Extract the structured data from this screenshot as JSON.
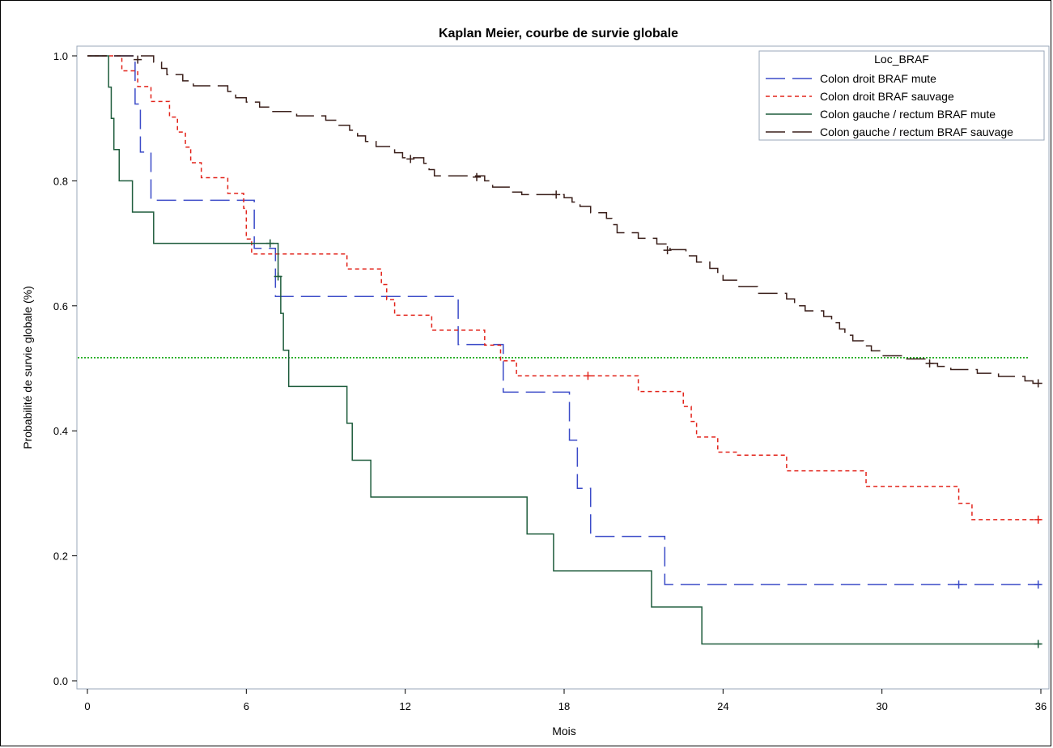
{
  "chart_data": {
    "type": "line",
    "title": "Kaplan Meier, courbe de survie globale",
    "xlabel": "Mois",
    "ylabel": "Probabilité de survie globale (%)",
    "xlim": [
      0,
      36
    ],
    "ylim": [
      0,
      1
    ],
    "xticks": [
      "0",
      "6",
      "12",
      "18",
      "24",
      "30",
      "36"
    ],
    "yticks": [
      "0.0",
      "0.2",
      "0.4",
      "0.6",
      "0.8",
      "1.0"
    ],
    "grid": false,
    "legend": {
      "title": "Loc_BRAF",
      "position": "top-right"
    },
    "reference_line": {
      "y": 0.517,
      "color": "#00a000"
    },
    "series": [
      {
        "name": "Colon droit BRAF mute",
        "color": "#3b4bc8",
        "steps": [
          [
            0,
            1
          ],
          [
            1.8,
            0.923
          ],
          [
            2.0,
            0.846
          ],
          [
            2.4,
            0.769
          ],
          [
            6.3,
            0.692
          ],
          [
            7.1,
            0.615
          ],
          [
            14.0,
            0.538
          ],
          [
            15.7,
            0.462
          ],
          [
            18.2,
            0.385
          ],
          [
            18.5,
            0.308
          ],
          [
            19.0,
            0.231
          ],
          [
            21.8,
            0.154
          ],
          [
            36,
            0.154
          ]
        ],
        "censored": [
          [
            32.9,
            0.154
          ],
          [
            35.9,
            0.154
          ]
        ]
      },
      {
        "name": "Colon droit BRAF sauvage",
        "color": "#e2231a",
        "steps": [
          [
            0,
            1
          ],
          [
            1.3,
            0.976
          ],
          [
            1.9,
            0.951
          ],
          [
            2.4,
            0.927
          ],
          [
            3.1,
            0.902
          ],
          [
            3.4,
            0.878
          ],
          [
            3.7,
            0.854
          ],
          [
            3.9,
            0.829
          ],
          [
            4.3,
            0.805
          ],
          [
            5.3,
            0.78
          ],
          [
            5.9,
            0.756
          ],
          [
            6.0,
            0.707
          ],
          [
            6.2,
            0.683
          ],
          [
            9.8,
            0.659
          ],
          [
            11.1,
            0.634
          ],
          [
            11.3,
            0.61
          ],
          [
            11.6,
            0.585
          ],
          [
            13.0,
            0.561
          ],
          [
            15.0,
            0.537
          ],
          [
            15.6,
            0.512
          ],
          [
            16.2,
            0.488
          ],
          [
            20.8,
            0.463
          ],
          [
            22.5,
            0.439
          ],
          [
            22.8,
            0.415
          ],
          [
            23.0,
            0.39
          ],
          [
            23.8,
            0.366
          ],
          [
            24.5,
            0.361
          ],
          [
            26.4,
            0.336
          ],
          [
            29.4,
            0.311
          ],
          [
            32.9,
            0.284
          ],
          [
            33.4,
            0.258
          ],
          [
            36,
            0.258
          ]
        ],
        "censored": [
          [
            18.9,
            0.488
          ],
          [
            35.9,
            0.258
          ]
        ]
      },
      {
        "name": "Colon gauche / rectum BRAF mute",
        "color": "#1e5c3c",
        "steps": [
          [
            0,
            1
          ],
          [
            0.8,
            0.95
          ],
          [
            0.9,
            0.9
          ],
          [
            1.0,
            0.85
          ],
          [
            1.2,
            0.8
          ],
          [
            1.7,
            0.75
          ],
          [
            2.5,
            0.7
          ],
          [
            7.2,
            0.647
          ],
          [
            7.3,
            0.588
          ],
          [
            7.4,
            0.529
          ],
          [
            7.6,
            0.471
          ],
          [
            9.8,
            0.412
          ],
          [
            10.0,
            0.353
          ],
          [
            10.7,
            0.294
          ],
          [
            16.6,
            0.235
          ],
          [
            17.6,
            0.176
          ],
          [
            21.3,
            0.118
          ],
          [
            23.2,
            0.059
          ],
          [
            36,
            0.059
          ]
        ],
        "censored": [
          [
            6.9,
            0.7
          ],
          [
            7.2,
            0.647
          ],
          [
            35.9,
            0.059
          ]
        ]
      },
      {
        "name": "Colon gauche / rectum BRAF sauvage",
        "color": "#3a1f1a",
        "steps": [
          [
            0,
            1
          ],
          [
            2.5,
            0.99
          ],
          [
            2.8,
            0.98
          ],
          [
            3.0,
            0.97
          ],
          [
            3.6,
            0.96
          ],
          [
            4.0,
            0.952
          ],
          [
            5.3,
            0.943
          ],
          [
            5.6,
            0.933
          ],
          [
            6.0,
            0.926
          ],
          [
            6.5,
            0.918
          ],
          [
            7.0,
            0.911
          ],
          [
            7.9,
            0.904
          ],
          [
            9.0,
            0.897
          ],
          [
            9.5,
            0.889
          ],
          [
            9.9,
            0.881
          ],
          [
            10.2,
            0.872
          ],
          [
            10.5,
            0.863
          ],
          [
            10.9,
            0.855
          ],
          [
            11.6,
            0.845
          ],
          [
            11.9,
            0.837
          ],
          [
            12.7,
            0.828
          ],
          [
            12.9,
            0.818
          ],
          [
            13.1,
            0.808
          ],
          [
            15.0,
            0.8
          ],
          [
            15.3,
            0.79
          ],
          [
            16.0,
            0.782
          ],
          [
            16.4,
            0.778
          ],
          [
            18.0,
            0.773
          ],
          [
            18.3,
            0.766
          ],
          [
            18.6,
            0.759
          ],
          [
            19.0,
            0.749
          ],
          [
            19.6,
            0.74
          ],
          [
            19.8,
            0.73
          ],
          [
            20.0,
            0.717
          ],
          [
            20.8,
            0.708
          ],
          [
            21.5,
            0.699
          ],
          [
            22.0,
            0.69
          ],
          [
            22.6,
            0.68
          ],
          [
            23.0,
            0.67
          ],
          [
            23.5,
            0.66
          ],
          [
            23.8,
            0.651
          ],
          [
            24.0,
            0.641
          ],
          [
            24.6,
            0.631
          ],
          [
            25.3,
            0.62
          ],
          [
            26.4,
            0.611
          ],
          [
            26.7,
            0.6
          ],
          [
            27.1,
            0.592
          ],
          [
            27.8,
            0.583
          ],
          [
            28.1,
            0.573
          ],
          [
            28.4,
            0.563
          ],
          [
            28.6,
            0.553
          ],
          [
            28.9,
            0.544
          ],
          [
            29.3,
            0.536
          ],
          [
            29.6,
            0.528
          ],
          [
            30.0,
            0.52
          ],
          [
            30.9,
            0.515
          ],
          [
            31.8,
            0.508
          ],
          [
            32.1,
            0.503
          ],
          [
            32.6,
            0.498
          ],
          [
            33.6,
            0.492
          ],
          [
            34.4,
            0.487
          ],
          [
            35.4,
            0.48
          ],
          [
            35.7,
            0.476
          ],
          [
            36,
            0.476
          ]
        ],
        "censored": [
          [
            1.9,
            0.994
          ],
          [
            12.2,
            0.835
          ],
          [
            14.7,
            0.806
          ],
          [
            17.7,
            0.778
          ],
          [
            21.9,
            0.689
          ],
          [
            31.8,
            0.508
          ],
          [
            35.9,
            0.476
          ]
        ]
      }
    ]
  }
}
